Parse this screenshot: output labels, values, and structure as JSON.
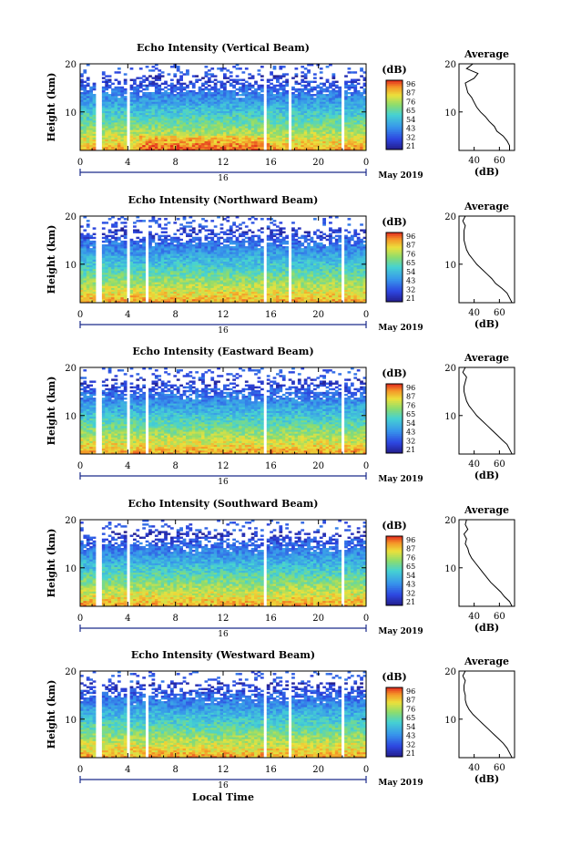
{
  "figure": {
    "month_label": "May 2019",
    "date_tick": "16",
    "bottom_xlabel": "Local Time"
  },
  "chart_data": [
    {
      "type": "heatmap",
      "title": "Echo Intensity (Vertical Beam)",
      "ylabel": "Height (km)",
      "yticks": [
        "20",
        "10"
      ],
      "ylim": [
        2,
        20
      ],
      "xlim": [
        0,
        24
      ],
      "xticks": [
        "0",
        "4",
        "8",
        "12",
        "16",
        "20",
        "0"
      ],
      "colorbar": {
        "label": "(dB)",
        "ticks": [
          "96",
          "87",
          "76",
          "65",
          "54",
          "43",
          "32",
          "21"
        ]
      },
      "data_gaps_hours": [
        [
          1.4,
          1.8
        ],
        [
          3.9,
          4.3
        ],
        [
          15.4,
          15.7
        ],
        [
          17.6,
          17.8
        ],
        [
          20.5,
          20.7
        ],
        [
          21.9,
          22.1
        ]
      ],
      "average_profile": {
        "title": "Average",
        "xlabel": "(dB)",
        "xticks": [
          "40",
          "60"
        ],
        "yticks": [
          "20",
          "10"
        ],
        "xlim": [
          28,
          72
        ],
        "height_km": [
          2,
          3,
          4,
          5,
          6,
          7,
          8,
          9,
          10,
          11,
          12,
          13,
          14,
          15,
          16,
          17,
          18,
          19,
          20
        ],
        "value_db": [
          68,
          68,
          66,
          63,
          58,
          56,
          52,
          49,
          45,
          42,
          40,
          38,
          35,
          34,
          33,
          40,
          43,
          34,
          39
        ]
      }
    },
    {
      "type": "heatmap",
      "title": "Echo Intensity (Northward Beam)",
      "ylabel": "Height (km)",
      "yticks": [
        "20",
        "10"
      ],
      "ylim": [
        2,
        20
      ],
      "xlim": [
        0,
        24
      ],
      "xticks": [
        "0",
        "4",
        "8",
        "12",
        "16",
        "20",
        "0"
      ],
      "colorbar": {
        "label": "(dB)",
        "ticks": [
          "96",
          "87",
          "76",
          "65",
          "54",
          "43",
          "32",
          "21"
        ]
      },
      "data_gaps_hours": [
        [
          1.4,
          1.8
        ],
        [
          3.9,
          4.3
        ],
        [
          5.6,
          5.8
        ],
        [
          15.4,
          15.7
        ],
        [
          17.6,
          17.8
        ],
        [
          20.5,
          20.7
        ],
        [
          21.9,
          22.1
        ]
      ],
      "average_profile": {
        "title": "Average",
        "xlabel": "(dB)",
        "xticks": [
          "40",
          "60"
        ],
        "yticks": [
          "20",
          "10"
        ],
        "xlim": [
          28,
          72
        ],
        "height_km": [
          2,
          3,
          4,
          5,
          6,
          7,
          8,
          9,
          10,
          11,
          12,
          13,
          14,
          15,
          16,
          17,
          18,
          19,
          20
        ],
        "value_db": [
          70,
          68,
          66,
          62,
          57,
          54,
          50,
          46,
          42,
          39,
          36,
          34,
          33,
          32,
          32,
          32,
          33,
          31,
          33
        ]
      }
    },
    {
      "type": "heatmap",
      "title": "Echo Intensity (Eastward Beam)",
      "ylabel": "Height (km)",
      "yticks": [
        "20",
        "10"
      ],
      "ylim": [
        2,
        20
      ],
      "xlim": [
        0,
        24
      ],
      "xticks": [
        "0",
        "4",
        "8",
        "12",
        "16",
        "20",
        "0"
      ],
      "colorbar": {
        "label": "(dB)",
        "ticks": [
          "96",
          "87",
          "76",
          "65",
          "54",
          "43",
          "32",
          "21"
        ]
      },
      "data_gaps_hours": [
        [
          1.4,
          1.8
        ],
        [
          3.9,
          4.3
        ],
        [
          5.6,
          5.8
        ],
        [
          15.4,
          15.7
        ],
        [
          20.5,
          20.7
        ],
        [
          21.9,
          22.1
        ]
      ],
      "average_profile": {
        "title": "Average",
        "xlabel": "(dB)",
        "xticks": [
          "40",
          "60"
        ],
        "yticks": [
          "20",
          "10"
        ],
        "xlim": [
          28,
          72
        ],
        "height_km": [
          2,
          3,
          4,
          5,
          6,
          7,
          8,
          9,
          10,
          11,
          12,
          13,
          14,
          15,
          16,
          17,
          18,
          19,
          20
        ],
        "value_db": [
          70,
          68,
          66,
          62,
          58,
          54,
          50,
          46,
          42,
          39,
          36,
          34,
          33,
          32,
          32,
          33,
          34,
          31,
          33
        ]
      }
    },
    {
      "type": "heatmap",
      "title": "Echo Intensity (Southward Beam)",
      "ylabel": "Height (km)",
      "yticks": [
        "20",
        "10"
      ],
      "ylim": [
        2,
        20
      ],
      "xlim": [
        0,
        24
      ],
      "xticks": [
        "0",
        "4",
        "8",
        "12",
        "16",
        "20",
        "0"
      ],
      "colorbar": {
        "label": "(dB)",
        "ticks": [
          "96",
          "87",
          "76",
          "65",
          "54",
          "43",
          "32",
          "21"
        ]
      },
      "data_gaps_hours": [
        [
          1.4,
          1.8
        ],
        [
          3.9,
          4.3
        ],
        [
          15.4,
          15.7
        ],
        [
          20.5,
          20.7
        ],
        [
          21.9,
          22.1
        ]
      ],
      "average_profile": {
        "title": "Average",
        "xlabel": "(dB)",
        "xticks": [
          "40",
          "60"
        ],
        "yticks": [
          "20",
          "10"
        ],
        "xlim": [
          28,
          72
        ],
        "height_km": [
          2,
          3,
          4,
          5,
          6,
          7,
          8,
          9,
          10,
          11,
          12,
          13,
          14,
          15,
          16,
          17,
          18,
          19,
          20
        ],
        "value_db": [
          70,
          68,
          64,
          61,
          57,
          53,
          50,
          47,
          44,
          41,
          38,
          36,
          35,
          33,
          34,
          32,
          35,
          33,
          34
        ]
      }
    },
    {
      "type": "heatmap",
      "title": "Echo Intensity (Westward Beam)",
      "ylabel": "Height (km)",
      "yticks": [
        "20",
        "10"
      ],
      "ylim": [
        2,
        20
      ],
      "xlim": [
        0,
        24
      ],
      "xticks": [
        "0",
        "4",
        "8",
        "12",
        "16",
        "20",
        "0"
      ],
      "colorbar": {
        "label": "(dB)",
        "ticks": [
          "96",
          "87",
          "76",
          "65",
          "54",
          "43",
          "32",
          "21"
        ]
      },
      "data_gaps_hours": [
        [
          1.4,
          1.8
        ],
        [
          3.9,
          4.3
        ],
        [
          5.6,
          5.8
        ],
        [
          15.4,
          15.7
        ],
        [
          17.6,
          17.8
        ],
        [
          20.5,
          20.7
        ],
        [
          21.9,
          22.1
        ]
      ],
      "average_profile": {
        "title": "Average",
        "xlabel": "(dB)",
        "xticks": [
          "40",
          "60"
        ],
        "yticks": [
          "20",
          "10"
        ],
        "xlim": [
          28,
          72
        ],
        "height_km": [
          2,
          3,
          4,
          5,
          6,
          7,
          8,
          9,
          10,
          11,
          12,
          13,
          14,
          15,
          16,
          17,
          18,
          19,
          20
        ],
        "value_db": [
          70,
          68,
          66,
          63,
          59,
          55,
          51,
          47,
          43,
          39,
          36,
          34,
          33,
          33,
          32,
          32,
          33,
          31,
          33
        ]
      }
    }
  ]
}
